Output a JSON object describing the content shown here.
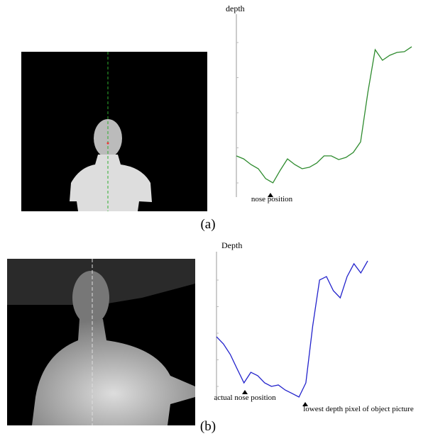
{
  "chart_data": [
    {
      "type": "line",
      "y_label": "depth",
      "caption": "(a)",
      "color": "#2e8b2e",
      "annotations": [
        "nose position"
      ],
      "ylim": [
        0,
        100
      ],
      "values": [
        22.5,
        20.9,
        17.8,
        15.5,
        10.1,
        7.8,
        14.7,
        20.9,
        17.8,
        15.5,
        16.3,
        18.6,
        22.5,
        22.5,
        20.5,
        21.7,
        24.4,
        30.2,
        57.4,
        80.6,
        74.8,
        77.5,
        79.1,
        79.5,
        82.2
      ]
    },
    {
      "type": "line",
      "y_label": "Depth",
      "caption": "(b)",
      "color": "#2222cc",
      "annotations": [
        "actual  nose position",
        "lowest  depth pixel  of object picture"
      ],
      "ylim": [
        0,
        100
      ],
      "values": [
        42.9,
        38.1,
        31,
        21.4,
        11.9,
        19,
        16.7,
        11.9,
        9.5,
        10.5,
        7.1,
        4.8,
        2.4,
        11.9,
        50,
        81,
        83.3,
        73.8,
        69,
        83.3,
        91.9,
        85.7,
        93.8
      ]
    }
  ]
}
